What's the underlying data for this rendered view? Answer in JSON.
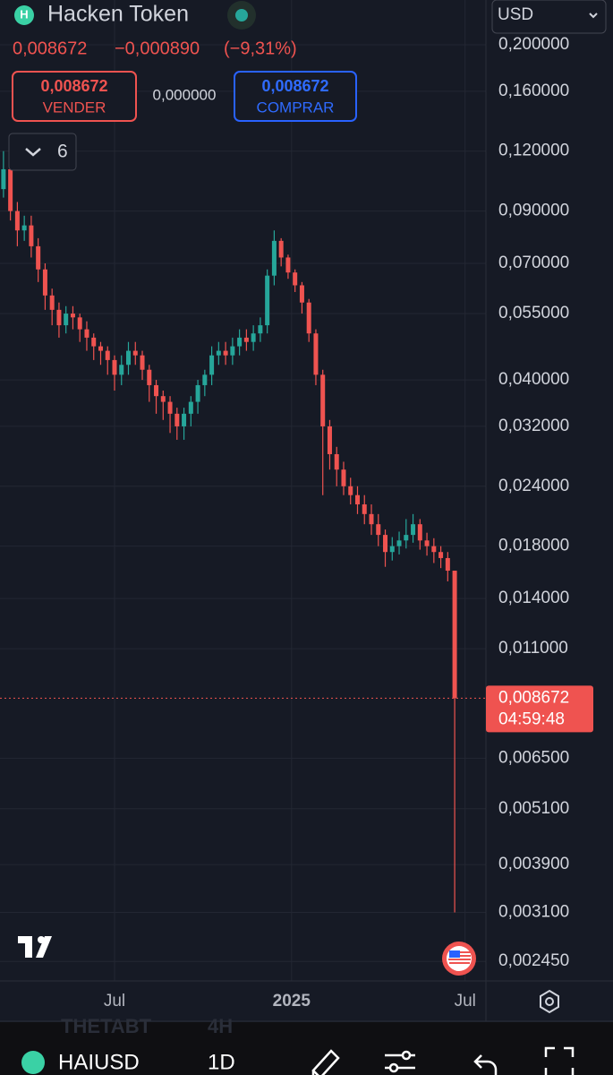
{
  "header": {
    "title": "Hacken Token",
    "price": "0,008672",
    "change": "−0,000890",
    "change_pct": "(−9,31%)",
    "currency": "USD"
  },
  "trade": {
    "sell_price": "0,008672",
    "sell_label": "VENDER",
    "spread": "0,000000",
    "buy_price": "0,008672",
    "buy_label": "COMPRAR",
    "indicators": "6"
  },
  "chart_data": {
    "type": "candlestick",
    "log_scale": true,
    "grid": true,
    "up_color": "#26a69a",
    "down_color": "#ef5350",
    "ylim": [
      0.00225,
      0.23
    ],
    "yticks": [
      {
        "value": 0.2,
        "label": "0,200000"
      },
      {
        "value": 0.16,
        "label": "0,160000"
      },
      {
        "value": 0.12,
        "label": "0,120000"
      },
      {
        "value": 0.09,
        "label": "0,090000"
      },
      {
        "value": 0.07,
        "label": "0,070000"
      },
      {
        "value": 0.055,
        "label": "0,055000"
      },
      {
        "value": 0.04,
        "label": "0,040000"
      },
      {
        "value": 0.032,
        "label": "0,032000"
      },
      {
        "value": 0.024,
        "label": "0,024000"
      },
      {
        "value": 0.018,
        "label": "0,018000"
      },
      {
        "value": 0.014,
        "label": "0,014000"
      },
      {
        "value": 0.011,
        "label": "0,011000"
      },
      {
        "value": 0.0065,
        "label": "0,006500"
      },
      {
        "value": 0.0051,
        "label": "0,005100"
      },
      {
        "value": 0.0039,
        "label": "0,003900"
      },
      {
        "value": 0.0031,
        "label": "0,003100"
      },
      {
        "value": 0.00245,
        "label": "0,002450"
      }
    ],
    "xlim": [
      -0.5,
      69.5
    ],
    "xticks": [
      {
        "value": 16,
        "label": "Jul"
      },
      {
        "value": 41.5,
        "label": "2025"
      },
      {
        "value": 66.5,
        "label": "Jul"
      }
    ],
    "open": [
      0.1,
      0.11,
      0.09,
      0.082,
      0.084,
      0.076,
      0.068,
      0.06,
      0.056,
      0.052,
      0.055,
      0.054,
      0.051,
      0.049,
      0.047,
      0.046,
      0.044,
      0.041,
      0.043,
      0.046,
      0.045,
      0.042,
      0.039,
      0.037,
      0.036,
      0.034,
      0.032,
      0.034,
      0.036,
      0.039,
      0.041,
      0.045,
      0.046,
      0.045,
      0.047,
      0.049,
      0.048,
      0.05,
      0.052,
      0.066,
      0.078,
      0.072,
      0.067,
      0.063,
      0.058,
      0.05,
      0.041,
      0.032,
      0.028,
      0.026,
      0.024,
      0.023,
      0.022,
      0.021,
      0.02,
      0.019,
      0.0175,
      0.018,
      0.0185,
      0.019,
      0.02,
      0.0185,
      0.018,
      0.0175,
      0.017,
      0.016
    ],
    "high": [
      0.12,
      0.115,
      0.094,
      0.088,
      0.088,
      0.079,
      0.07,
      0.062,
      0.058,
      0.057,
      0.057,
      0.055,
      0.053,
      0.05,
      0.048,
      0.047,
      0.045,
      0.045,
      0.048,
      0.048,
      0.046,
      0.043,
      0.04,
      0.038,
      0.037,
      0.035,
      0.035,
      0.037,
      0.04,
      0.042,
      0.047,
      0.048,
      0.048,
      0.049,
      0.051,
      0.051,
      0.052,
      0.054,
      0.068,
      0.082,
      0.079,
      0.073,
      0.068,
      0.064,
      0.059,
      0.051,
      0.042,
      0.033,
      0.029,
      0.027,
      0.025,
      0.024,
      0.023,
      0.022,
      0.021,
      0.0195,
      0.0188,
      0.0193,
      0.0205,
      0.021,
      0.0205,
      0.0192,
      0.0187,
      0.018,
      0.0175,
      0.016
    ],
    "low": [
      0.096,
      0.086,
      0.076,
      0.078,
      0.072,
      0.064,
      0.056,
      0.052,
      0.049,
      0.05,
      0.051,
      0.048,
      0.046,
      0.044,
      0.043,
      0.041,
      0.038,
      0.039,
      0.041,
      0.043,
      0.04,
      0.036,
      0.034,
      0.033,
      0.031,
      0.03,
      0.03,
      0.032,
      0.034,
      0.037,
      0.039,
      0.043,
      0.043,
      0.043,
      0.045,
      0.046,
      0.046,
      0.048,
      0.05,
      0.063,
      0.069,
      0.065,
      0.061,
      0.055,
      0.048,
      0.039,
      0.023,
      0.026,
      0.024,
      0.023,
      0.022,
      0.021,
      0.02,
      0.019,
      0.018,
      0.0163,
      0.0168,
      0.0173,
      0.0178,
      0.0183,
      0.0177,
      0.0172,
      0.0166,
      0.0162,
      0.0152,
      0.0031
    ],
    "close": [
      0.11,
      0.09,
      0.082,
      0.084,
      0.076,
      0.068,
      0.06,
      0.056,
      0.052,
      0.055,
      0.054,
      0.051,
      0.049,
      0.047,
      0.046,
      0.044,
      0.041,
      0.043,
      0.046,
      0.045,
      0.042,
      0.039,
      0.037,
      0.036,
      0.034,
      0.032,
      0.034,
      0.036,
      0.039,
      0.041,
      0.045,
      0.046,
      0.045,
      0.047,
      0.049,
      0.048,
      0.05,
      0.052,
      0.066,
      0.078,
      0.072,
      0.067,
      0.063,
      0.058,
      0.05,
      0.041,
      0.032,
      0.028,
      0.026,
      0.024,
      0.023,
      0.022,
      0.021,
      0.02,
      0.019,
      0.0175,
      0.018,
      0.0185,
      0.019,
      0.02,
      0.0185,
      0.018,
      0.0175,
      0.017,
      0.016,
      0.008672
    ],
    "last_price_label": "0,008672",
    "countdown": "04:59:48"
  },
  "footer": {
    "symbol": "HAIUSD",
    "interval": "1D",
    "ghost_symbol": "THETABT",
    "ghost_interval": "4H"
  }
}
